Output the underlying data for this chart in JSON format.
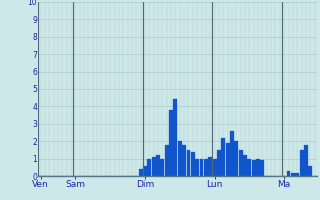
{
  "background_color": "#cce8e8",
  "plot_bg_color": "#cce8e8",
  "bar_color": "#1155cc",
  "bar_edge_color": "#1155cc",
  "grid_color_h": "#aacccc",
  "grid_color_v": "#bbcccc",
  "vline_color": "#556677",
  "ylabel_color": "#2222aa",
  "xlabel_color": "#2222aa",
  "ylim": [
    0,
    10
  ],
  "yticks": [
    0,
    1,
    2,
    3,
    4,
    5,
    6,
    7,
    8,
    9,
    10
  ],
  "day_labels": [
    "Ven",
    "Sam",
    "Dim",
    "Lun",
    "Ma"
  ],
  "day_positions": [
    0,
    8,
    24,
    40,
    56
  ],
  "n_bars": 64,
  "values": [
    0,
    0,
    0,
    0,
    0,
    0,
    0,
    0,
    0,
    0,
    0,
    0,
    0,
    0,
    0,
    0,
    0,
    0,
    0,
    0,
    0,
    0,
    0,
    0.4,
    0.6,
    1.0,
    1.1,
    1.2,
    1.0,
    1.8,
    3.8,
    4.4,
    2.0,
    1.8,
    1.5,
    1.4,
    1.0,
    1.0,
    1.0,
    1.1,
    1.0,
    1.5,
    2.2,
    1.9,
    2.6,
    2.0,
    1.5,
    1.2,
    1.0,
    0.9,
    1.0,
    0.9,
    0,
    0,
    0,
    0,
    0,
    0.3,
    0.2,
    0.2,
    1.5,
    1.8,
    0.6,
    0
  ]
}
